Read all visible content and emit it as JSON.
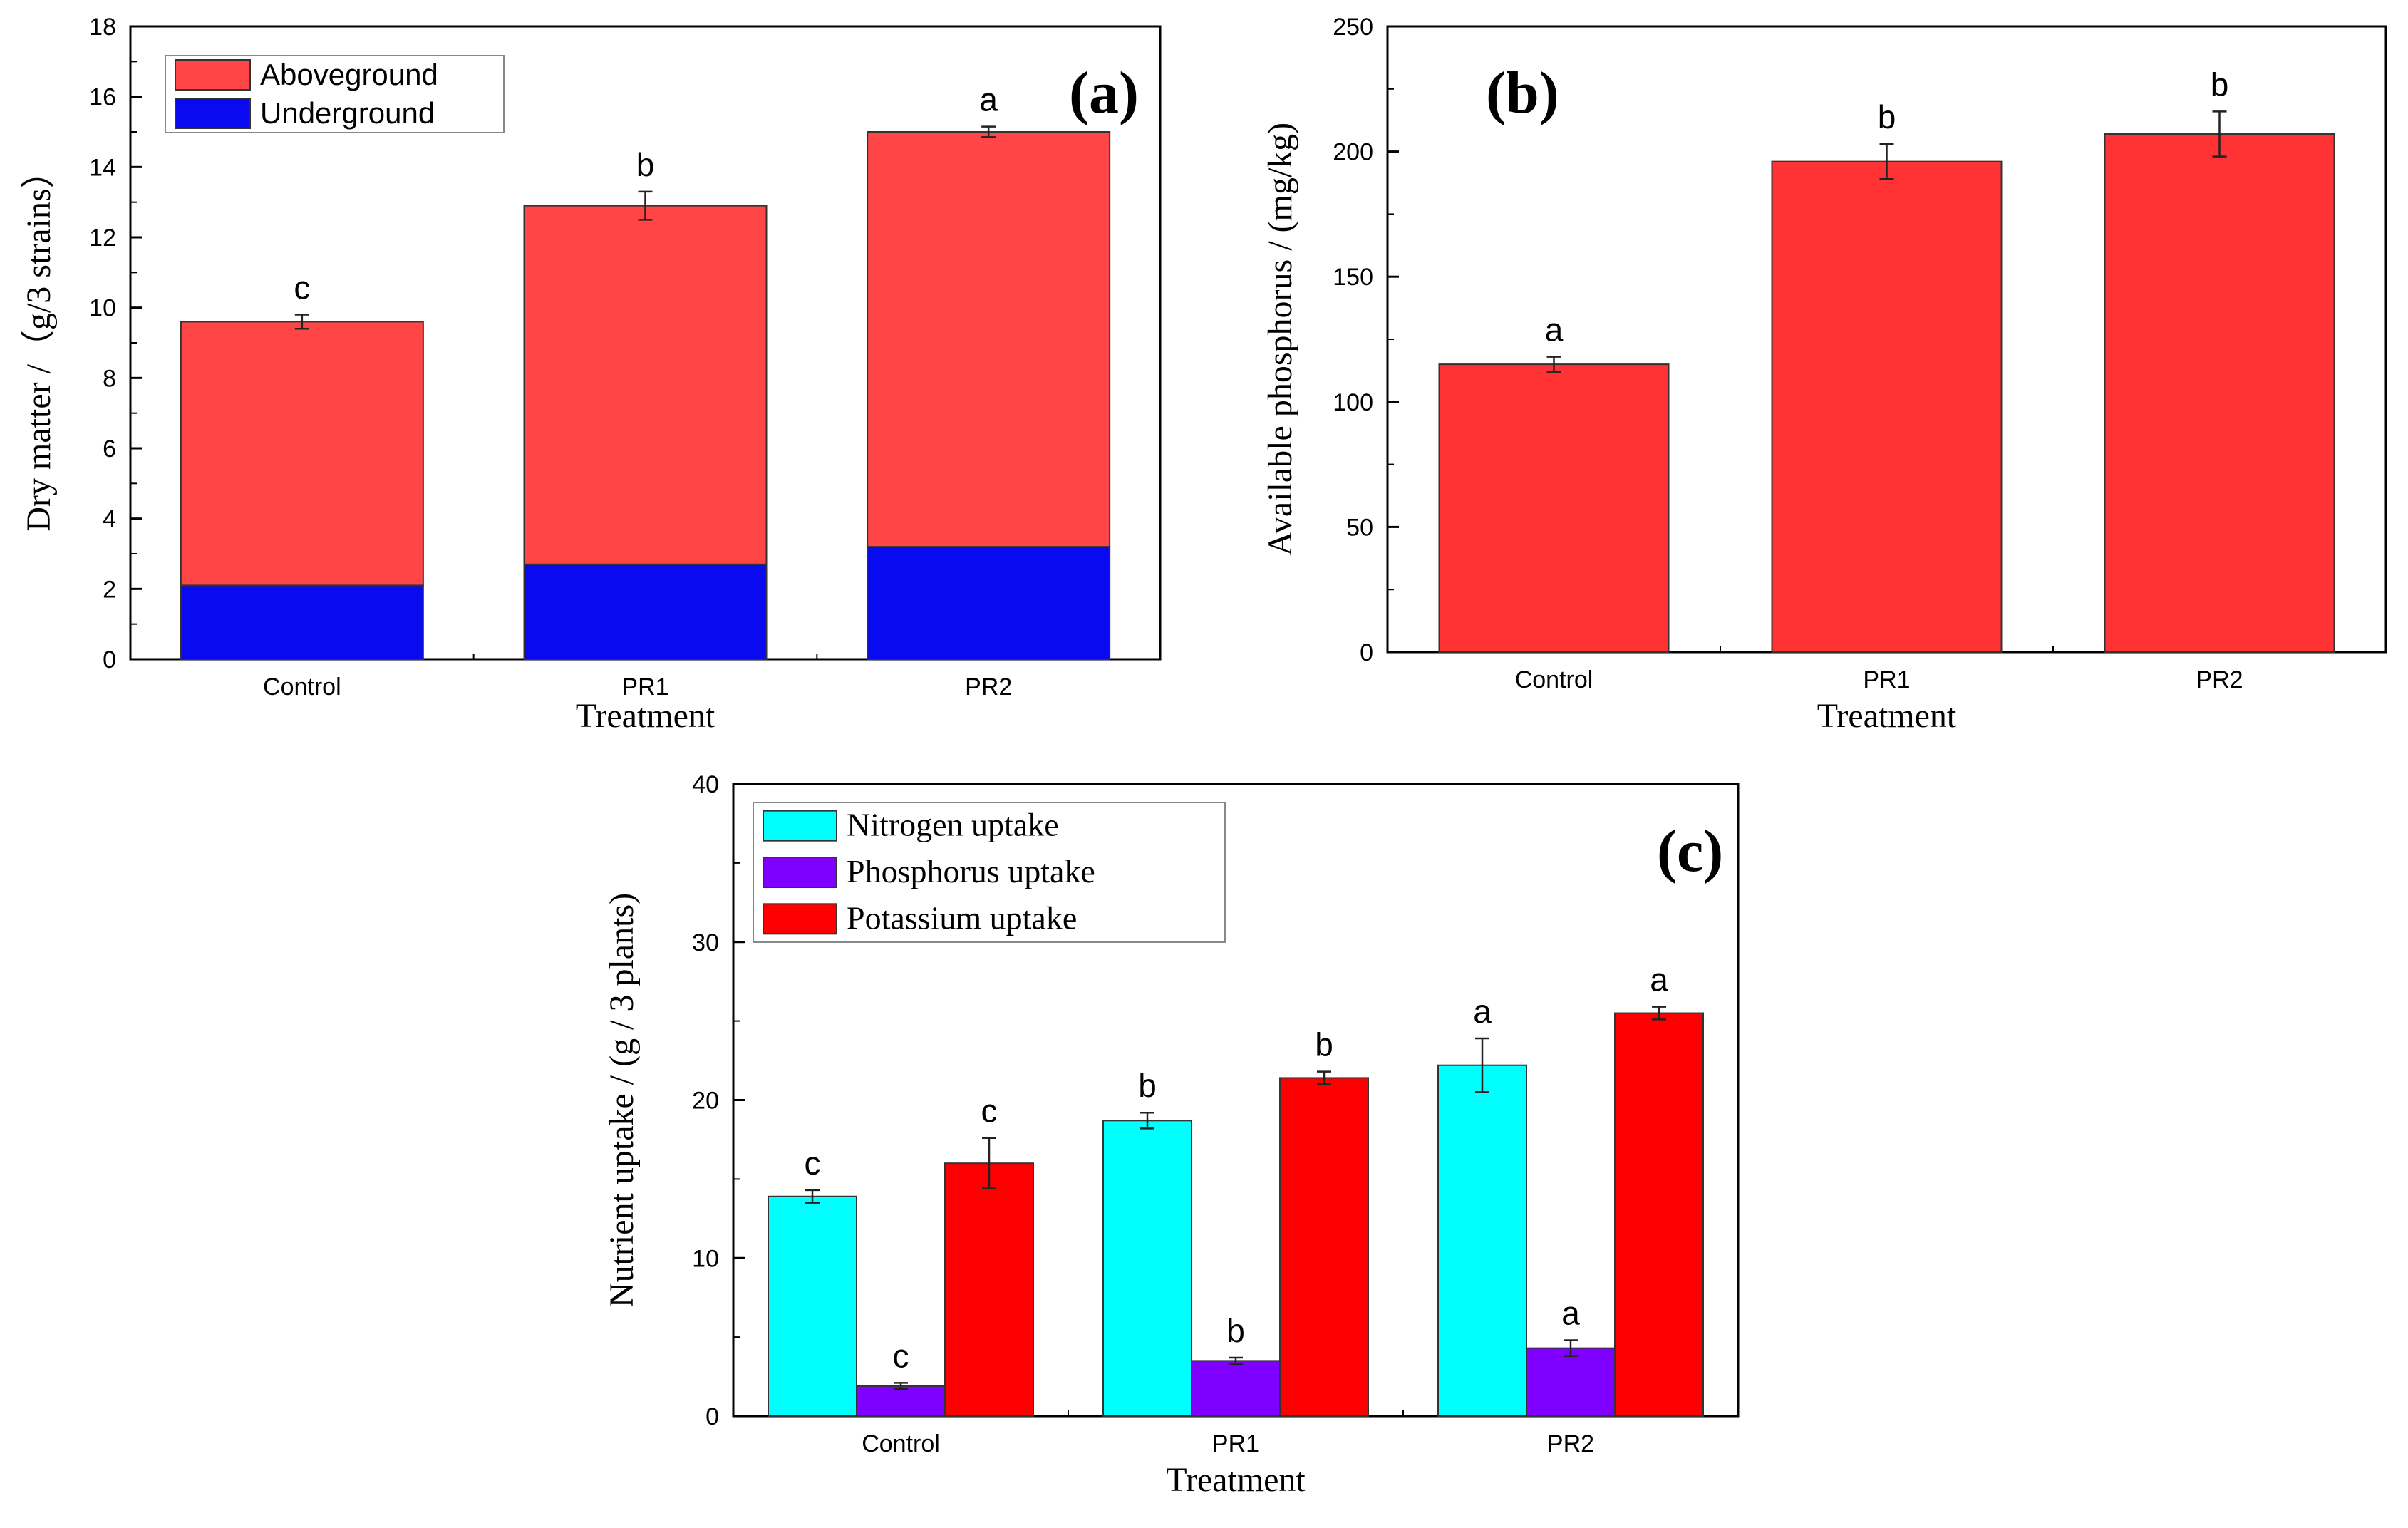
{
  "chart_data": [
    {
      "panel_label": "(a)",
      "type": "bar",
      "stacked": true,
      "categories": [
        "Control",
        "PR1",
        "PR2"
      ],
      "series": [
        {
          "name": "Aboveground",
          "color": "#ff4545",
          "values": [
            7.5,
            10.2,
            11.8
          ]
        },
        {
          "name": "Underground",
          "color": "#0a0af0",
          "values": [
            2.1,
            2.7,
            3.2
          ]
        }
      ],
      "totals": [
        9.6,
        12.9,
        15.0
      ],
      "error_bars": [
        0.2,
        0.4,
        0.15
      ],
      "significance": [
        "c",
        "b",
        "a"
      ],
      "xlabel": "Treatment",
      "ylabel": "Dry matter /（g/3 strains）",
      "ylim": [
        0,
        18
      ],
      "yticks": [
        "0",
        "2",
        "4",
        "6",
        "8",
        "10",
        "12",
        "14",
        "16",
        "18"
      ],
      "legend_position": "top-left",
      "grid": false
    },
    {
      "panel_label": "(b)",
      "type": "bar",
      "categories": [
        "Control",
        "PR1",
        "PR2"
      ],
      "series": [
        {
          "color": "#ff3333",
          "values": [
            115,
            196,
            207
          ]
        }
      ],
      "error_bars": [
        3,
        7,
        9
      ],
      "significance": [
        "a",
        "b",
        "b"
      ],
      "xlabel": "Treatment",
      "ylabel": "Available phosphorus / (mg/kg)",
      "ylim": [
        0,
        250
      ],
      "yticks": [
        "0",
        "50",
        "100",
        "150",
        "200",
        "250"
      ],
      "grid": false
    },
    {
      "panel_label": "(c)",
      "type": "bar",
      "categories": [
        "Control",
        "PR1",
        "PR2"
      ],
      "series": [
        {
          "name": "Nitrogen  uptake",
          "color": "#00ffff",
          "values": [
            13.9,
            18.7,
            22.2
          ],
          "errors": [
            0.4,
            0.5,
            1.7
          ],
          "significance": [
            "c",
            "b",
            "a"
          ]
        },
        {
          "name": "Phosphorus uptake",
          "color": "#8000ff",
          "values": [
            1.9,
            3.5,
            4.3
          ],
          "errors": [
            0.2,
            0.2,
            0.5
          ],
          "significance": [
            "c",
            "b",
            "a"
          ]
        },
        {
          "name": "Potassium uptake",
          "color": "#ff0000",
          "values": [
            16.0,
            21.4,
            25.5
          ],
          "errors": [
            1.6,
            0.4,
            0.4
          ],
          "significance": [
            "c",
            "b",
            "a"
          ]
        }
      ],
      "xlabel": "Treatment",
      "ylabel": "Nutrient uptake / (g / 3 plants)",
      "ylim": [
        0,
        40
      ],
      "yticks": [
        "0",
        "10",
        "20",
        "30",
        "40"
      ],
      "legend_position": "top-left",
      "grid": false
    }
  ]
}
